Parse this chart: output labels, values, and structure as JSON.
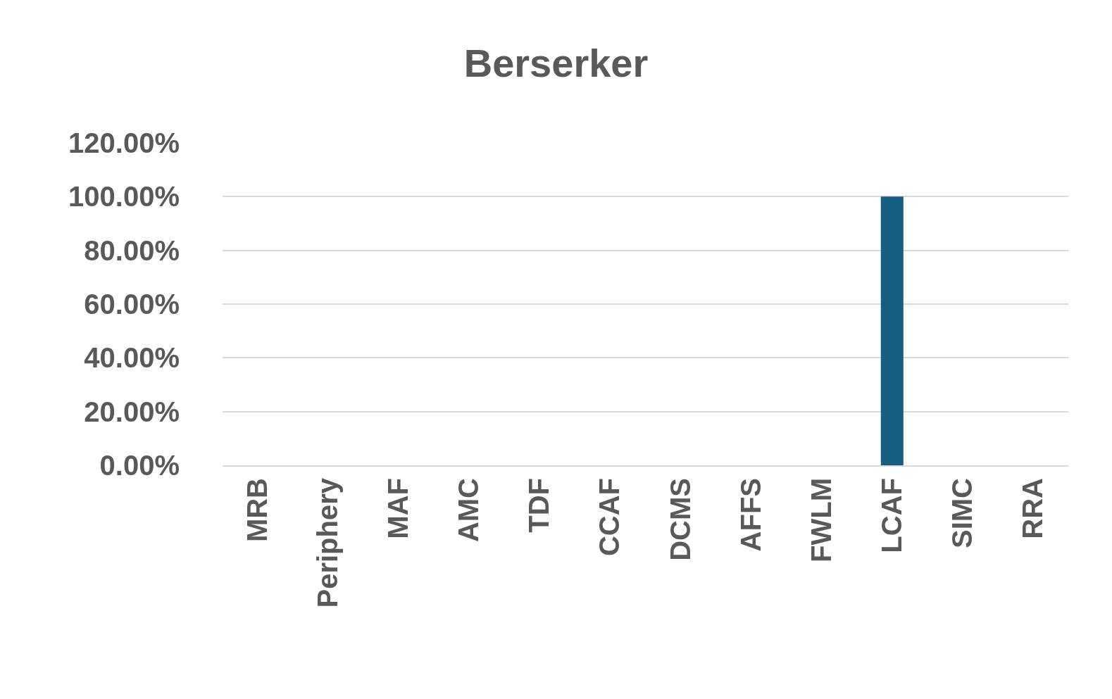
{
  "chart_data": {
    "type": "bar",
    "title": "Berserker",
    "categories": [
      "MRB",
      "Periphery",
      "MAF",
      "AMC",
      "TDF",
      "CCAF",
      "DCMS",
      "AFFS",
      "FWLM",
      "LCAF",
      "SIMC",
      "RRA"
    ],
    "values": [
      0,
      0,
      0,
      0,
      0,
      0,
      0,
      0,
      0,
      1.0,
      0,
      0
    ],
    "color": "#156082",
    "ylim": [
      0,
      1.2
    ],
    "yticks": [
      {
        "value": 0,
        "label": "0.00%"
      },
      {
        "value": 0.2,
        "label": "20.00%"
      },
      {
        "value": 0.4,
        "label": "40.00%"
      },
      {
        "value": 0.6,
        "label": "60.00%"
      },
      {
        "value": 0.8,
        "label": "80.00%"
      },
      {
        "value": 1.0,
        "label": "100.00%"
      },
      {
        "value": 1.2,
        "label": "120.00%"
      }
    ],
    "grid": "y"
  }
}
